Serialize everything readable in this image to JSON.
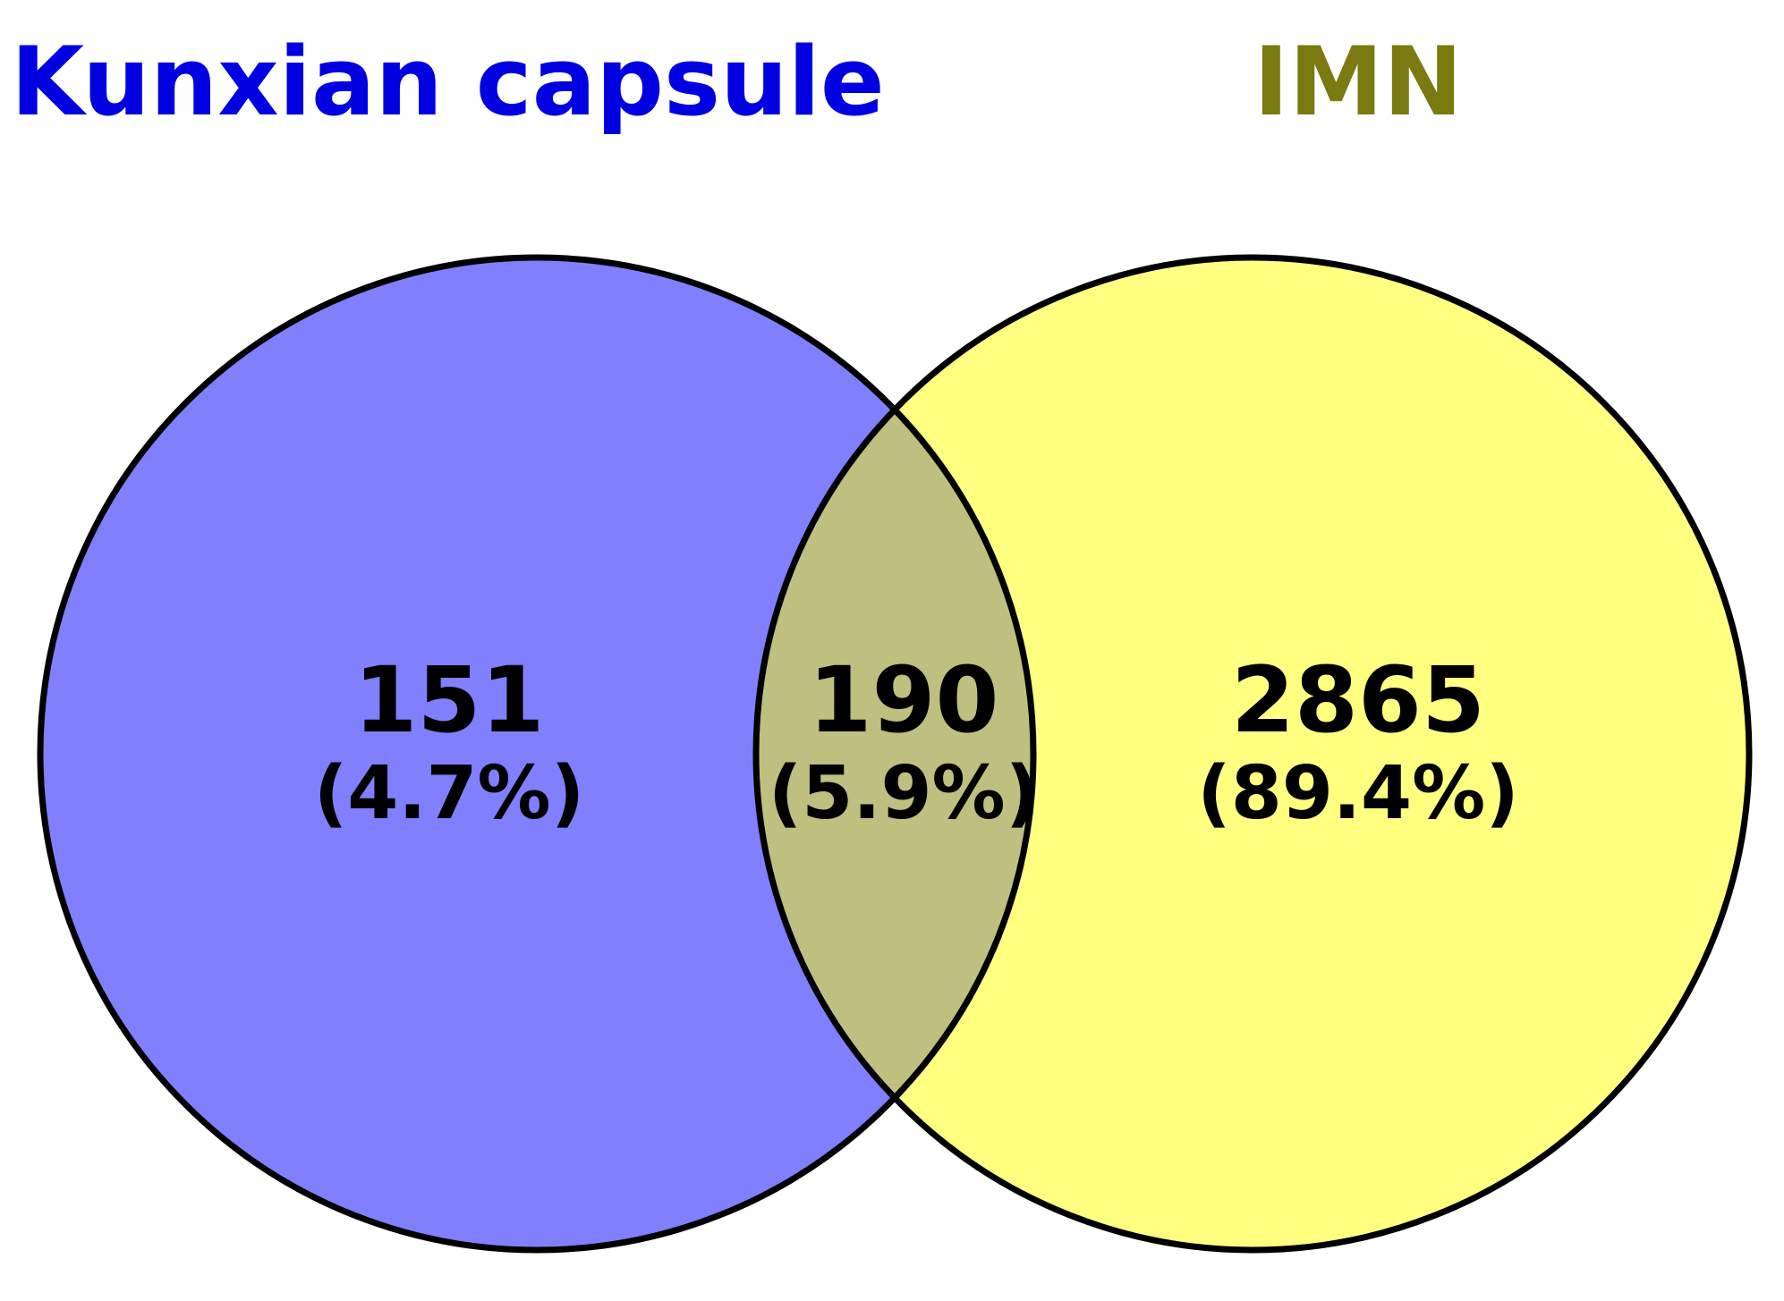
{
  "diagram": {
    "type": "venn",
    "sets": [
      {
        "name": "Kunxian capsule",
        "fill": "#8080ff",
        "label_color": "#0000e0"
      },
      {
        "name": "IMN",
        "fill": "#ffff80",
        "label_color": "#7a7a10"
      }
    ],
    "overlap_fill": "#bfbf80",
    "outline_color": "#000000",
    "regions": {
      "left_only": {
        "count": "151",
        "percent": "(4.7%)"
      },
      "both": {
        "count": "190",
        "percent": "(5.9%)"
      },
      "right_only": {
        "count": "2865",
        "percent": "(89.4%)"
      }
    }
  }
}
